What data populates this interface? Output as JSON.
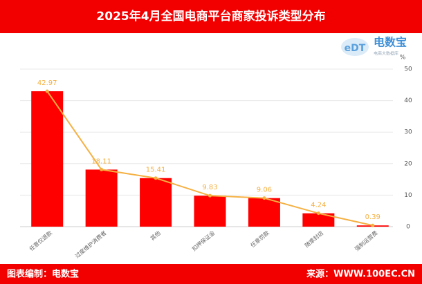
{
  "chart_data": {
    "type": "bar",
    "title": "2025年4月全国电商平台商家投诉类型分布",
    "categories": [
      "任意仅退款",
      "过度维护消费者",
      "其他",
      "扣押保证金",
      "任意罚款",
      "随意封店",
      "强制运营费"
    ],
    "values": [
      42.97,
      18.11,
      15.41,
      9.83,
      9.06,
      4.24,
      0.39
    ],
    "color": "#ff0000",
    "line_color": "#f5b041",
    "y_label": "%",
    "ylim": [
      0,
      50
    ],
    "yticks": [
      0,
      10,
      20,
      30,
      40,
      50
    ],
    "grid": true
  },
  "logo": {
    "mark": "eDT",
    "name": "电数宝",
    "tagline": "电商大数据库"
  },
  "footer": {
    "left": "图表编制：电数宝",
    "right": "来源：WWW.100EC.CN"
  }
}
